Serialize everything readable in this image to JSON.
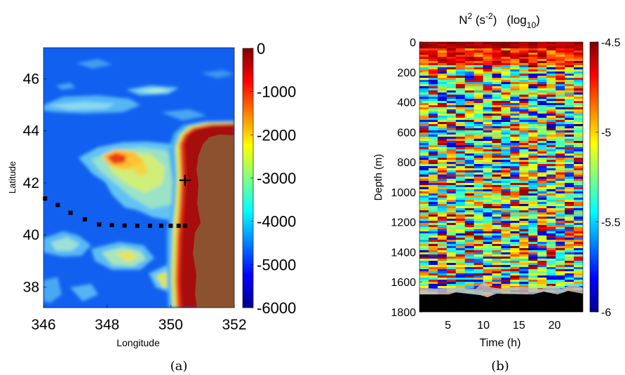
{
  "chart_data": [
    {
      "type": "heatmap",
      "panel_label": "(a)",
      "xlabel": "Longitude",
      "ylabel": "Latitude",
      "xlim": [
        346,
        352
      ],
      "ylim": [
        37.2,
        47.2
      ],
      "xticks": [
        346,
        348,
        350,
        352
      ],
      "yticks": [
        38,
        40,
        42,
        44,
        46
      ],
      "colorbar": {
        "colormap": "jet",
        "range": [
          -6000,
          0
        ],
        "ticks": [
          0,
          -1000,
          -2000,
          -3000,
          -4000,
          -5000,
          -6000
        ]
      },
      "land_color": "#8c5230",
      "station_markers": [
        {
          "lon": 346.05,
          "lat": 41.4
        },
        {
          "lon": 346.45,
          "lat": 41.15
        },
        {
          "lon": 346.85,
          "lat": 40.85
        },
        {
          "lon": 347.3,
          "lat": 40.6
        },
        {
          "lon": 347.75,
          "lat": 40.4
        },
        {
          "lon": 348.15,
          "lat": 40.38
        },
        {
          "lon": 348.55,
          "lat": 40.36
        },
        {
          "lon": 348.95,
          "lat": 40.35
        },
        {
          "lon": 349.35,
          "lat": 40.35
        },
        {
          "lon": 349.7,
          "lat": 40.35
        },
        {
          "lon": 350.0,
          "lat": 40.35
        },
        {
          "lon": 350.25,
          "lat": 40.35
        },
        {
          "lon": 350.45,
          "lat": 40.35
        }
      ],
      "cross_marker": {
        "lon": 350.45,
        "lat": 42.1
      }
    },
    {
      "type": "heatmap",
      "panel_label": "(b)",
      "title_main": "N",
      "title_sup": "2",
      "title_unit_pre": " (s",
      "title_unit_sup": "-2",
      "title_unit_post": ")",
      "title_log_pre": "(log",
      "title_log_sub": "10",
      "title_log_post": ")",
      "xlabel": "Time (h)",
      "ylabel": "Depth (m)",
      "xlim": [
        1,
        24
      ],
      "ylim": [
        1800,
        0
      ],
      "xticks": [
        5,
        10,
        15,
        20
      ],
      "yticks": [
        0,
        200,
        400,
        600,
        800,
        1000,
        1200,
        1400,
        1600,
        1800
      ],
      "seafloor_depth_m": 1700,
      "colorbar": {
        "colormap": "jet",
        "range": [
          -6,
          -4.5
        ],
        "ticks": [
          -4.5,
          -5,
          -5.5,
          -6
        ],
        "tick_labels": [
          "-4.5",
          "-5",
          "-5.5",
          "-6"
        ]
      }
    }
  ]
}
